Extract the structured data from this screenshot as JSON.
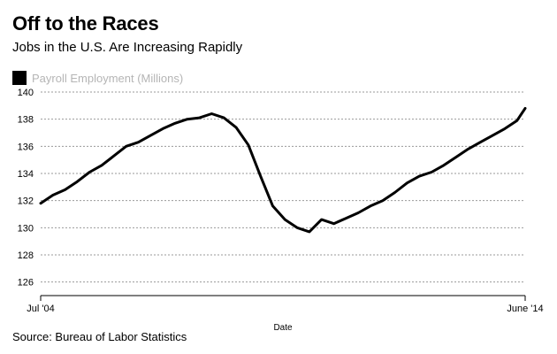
{
  "title": "Off to the Races",
  "subtitle": "Jobs in the U.S. Are Increasing Rapidly",
  "source": "Source: Bureau of Labor Statistics",
  "colors": {
    "line": "#000000",
    "legend_text": "#b5b5b5",
    "grid": "#999999"
  },
  "chart_data": {
    "type": "line",
    "title": "Off to the Races",
    "subtitle": "Jobs in the U.S. Are Increasing Rapidly",
    "xlabel": "Date",
    "ylabel": "",
    "legend": {
      "placement": "top-left",
      "entries": [
        "Payroll Employment (Millions)"
      ]
    },
    "grid": "horizontal-dotted",
    "ylim": [
      125,
      140
    ],
    "yticks": [
      126,
      128,
      130,
      132,
      134,
      136,
      138,
      140
    ],
    "xlim": [
      "2004-07",
      "2014-06"
    ],
    "xtick_labels": [
      "Jul '04",
      "June '14"
    ],
    "series": [
      {
        "name": "Payroll Employment (Millions)",
        "x": [
          "2004-07",
          "2004-10",
          "2005-01",
          "2005-04",
          "2005-07",
          "2005-10",
          "2006-01",
          "2006-04",
          "2006-07",
          "2006-10",
          "2007-01",
          "2007-04",
          "2007-07",
          "2007-10",
          "2008-01",
          "2008-04",
          "2008-07",
          "2008-10",
          "2009-01",
          "2009-04",
          "2009-07",
          "2009-10",
          "2010-01",
          "2010-04",
          "2010-07",
          "2010-10",
          "2011-01",
          "2011-04",
          "2011-07",
          "2011-10",
          "2012-01",
          "2012-04",
          "2012-07",
          "2012-10",
          "2013-01",
          "2013-04",
          "2013-07",
          "2013-10",
          "2014-01",
          "2014-04",
          "2014-06"
        ],
        "values": [
          131.8,
          132.4,
          132.8,
          133.4,
          134.1,
          134.6,
          135.3,
          136.0,
          136.3,
          136.8,
          137.3,
          137.7,
          138.0,
          138.1,
          138.4,
          138.1,
          137.4,
          136.1,
          133.8,
          131.6,
          130.6,
          130.0,
          129.7,
          130.6,
          130.3,
          130.7,
          131.1,
          131.6,
          132.0,
          132.6,
          133.3,
          133.8,
          134.1,
          134.6,
          135.2,
          135.8,
          136.3,
          136.8,
          137.3,
          137.9,
          138.8
        ]
      }
    ]
  }
}
